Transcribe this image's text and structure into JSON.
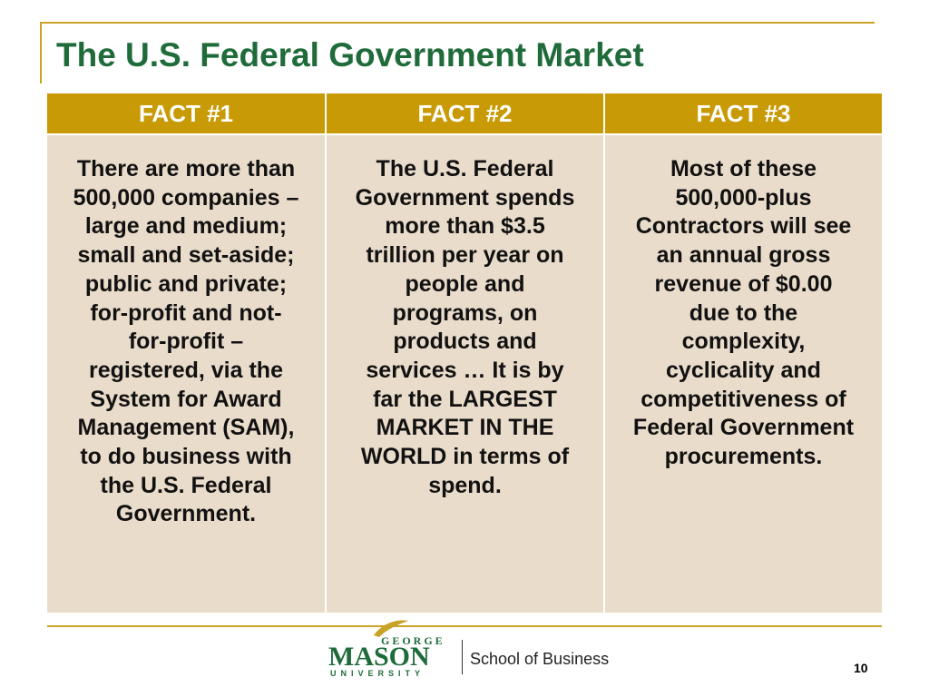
{
  "slide": {
    "title": "The U.S. Federal Government Market",
    "page_number": "10"
  },
  "facts": [
    {
      "header": "FACT #1",
      "body": "There are more than\n500,000 companies –\nlarge and medium;\nsmall  and set-aside;\npublic and private;\nfor-profit and not-\nfor-profit –\nregistered, via the\nSystem for Award\nManagement (SAM),\n to do business with\nthe U.S. Federal\nGovernment."
    },
    {
      "header": "FACT #2",
      "body": "The U.S. Federal\nGovernment spends\nmore than $3.5\ntrillion per year on\npeople and\nprograms, on\nproducts and\nservices … It is by\nfar the LARGEST\nMARKET IN THE\nWORLD in terms of\nspend."
    },
    {
      "header": "FACT #3",
      "body": "Most of these\n500,000-plus\nContractors will see\nan annual gross\nrevenue of $0.00\ndue to the\ncomplexity,\ncyclicality and\ncompetitiveness of\nFederal Government\nprocurements."
    }
  ],
  "footer": {
    "logo_top": "GEORGE",
    "logo_main": "MASON",
    "logo_bottom": "UNIVERSITY",
    "school": "School of Business"
  },
  "colors": {
    "title": "#1f6b3a",
    "header_fill": "#c89b06",
    "cell_fill": "#eadccb",
    "rule": "#c9a227"
  }
}
